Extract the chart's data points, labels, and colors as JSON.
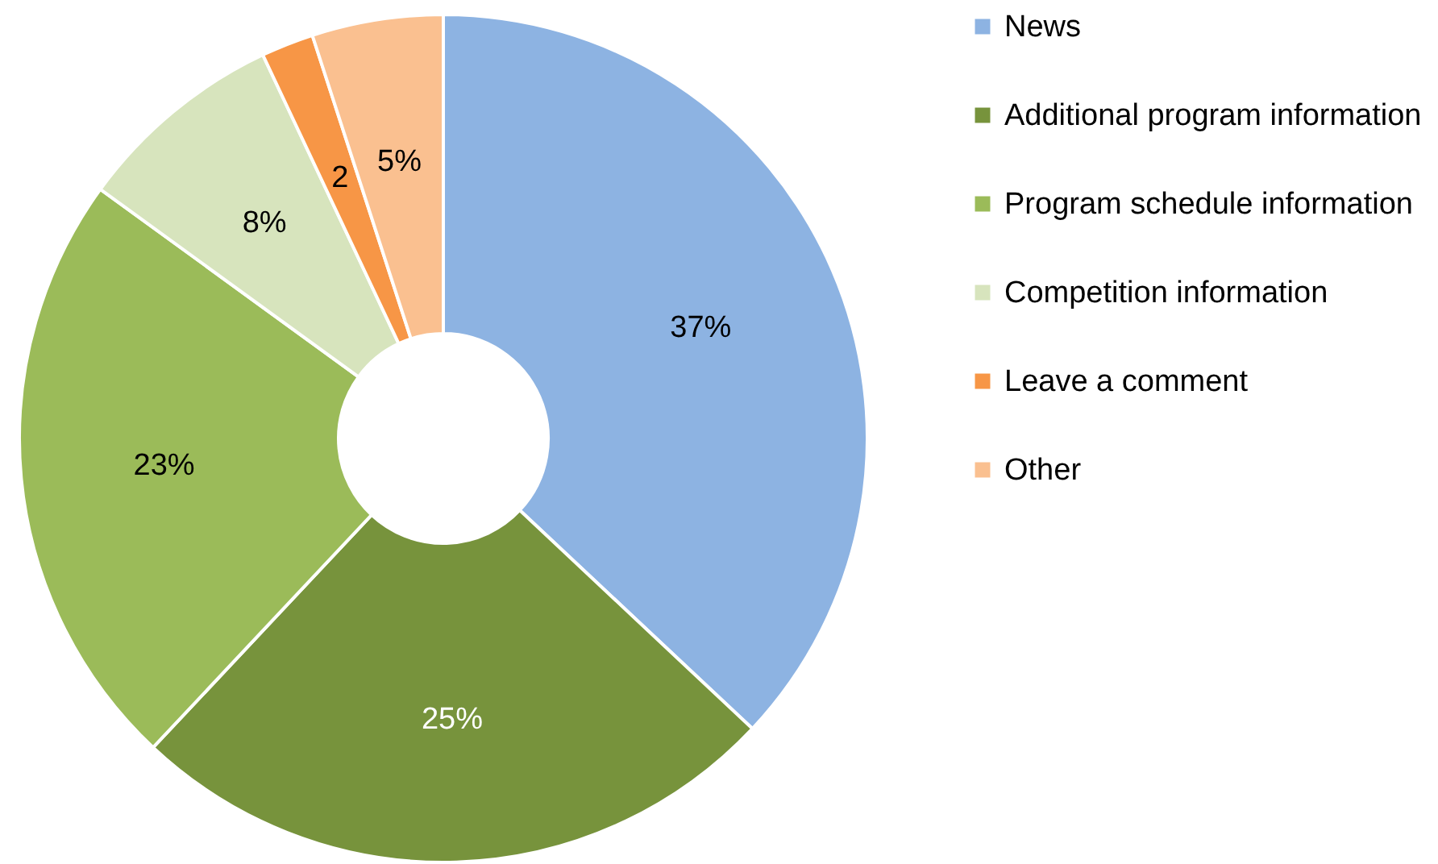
{
  "chart_data": {
    "type": "donut",
    "categories": [
      "News",
      "Additional program information",
      "Program schedule information",
      "Competition information",
      "Leave a comment",
      "Other"
    ],
    "values": [
      37,
      25,
      23,
      8,
      2,
      5
    ],
    "colors": [
      "#8db3e2",
      "#77933c",
      "#9bbb59",
      "#d7e4bd",
      "#f79646",
      "#fac090"
    ],
    "value_labels": [
      "37%",
      "25%",
      "23%",
      "8%",
      "2",
      "5%"
    ],
    "legend": "right"
  }
}
